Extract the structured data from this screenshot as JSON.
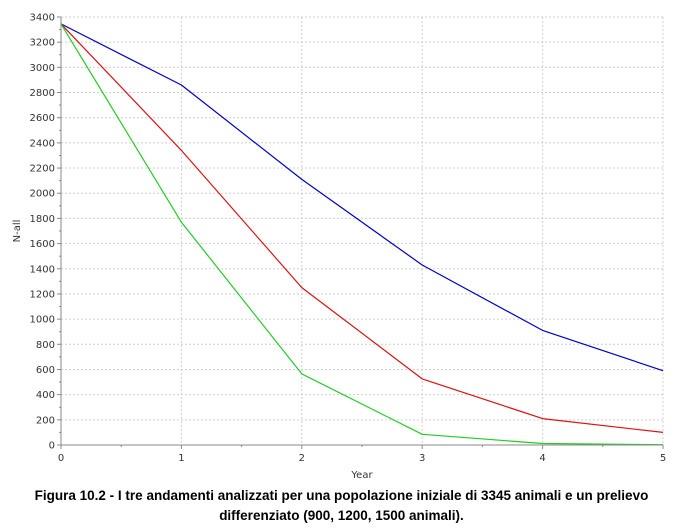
{
  "caption": {
    "line1": "Figura 10.2 - I tre andamenti analizzati per una popolazione iniziale di 3345 animali e un prelievo",
    "line2": "differenziato (900, 1200, 1500 animali)."
  },
  "chart_data": {
    "type": "line",
    "title": "",
    "xlabel": "Year",
    "ylabel": "N-all",
    "xlim": [
      0,
      5
    ],
    "ylim": [
      0,
      3400
    ],
    "xticks": [
      0,
      1,
      2,
      3,
      4,
      5
    ],
    "yticks": [
      0,
      200,
      400,
      600,
      800,
      1000,
      1200,
      1400,
      1600,
      1800,
      2000,
      2200,
      2400,
      2600,
      2800,
      3000,
      3200,
      3400
    ],
    "grid": true,
    "x": [
      0,
      1,
      2,
      3,
      4,
      5
    ],
    "series": [
      {
        "color": "#0000cc",
        "values": [
          3345,
          2860,
          2110,
          1430,
          910,
          590
        ]
      },
      {
        "color": "#dd1111",
        "values": [
          3345,
          2340,
          1250,
          525,
          210,
          100
        ]
      },
      {
        "color": "#22cc22",
        "values": [
          3345,
          1770,
          565,
          85,
          12,
          2
        ]
      }
    ]
  }
}
